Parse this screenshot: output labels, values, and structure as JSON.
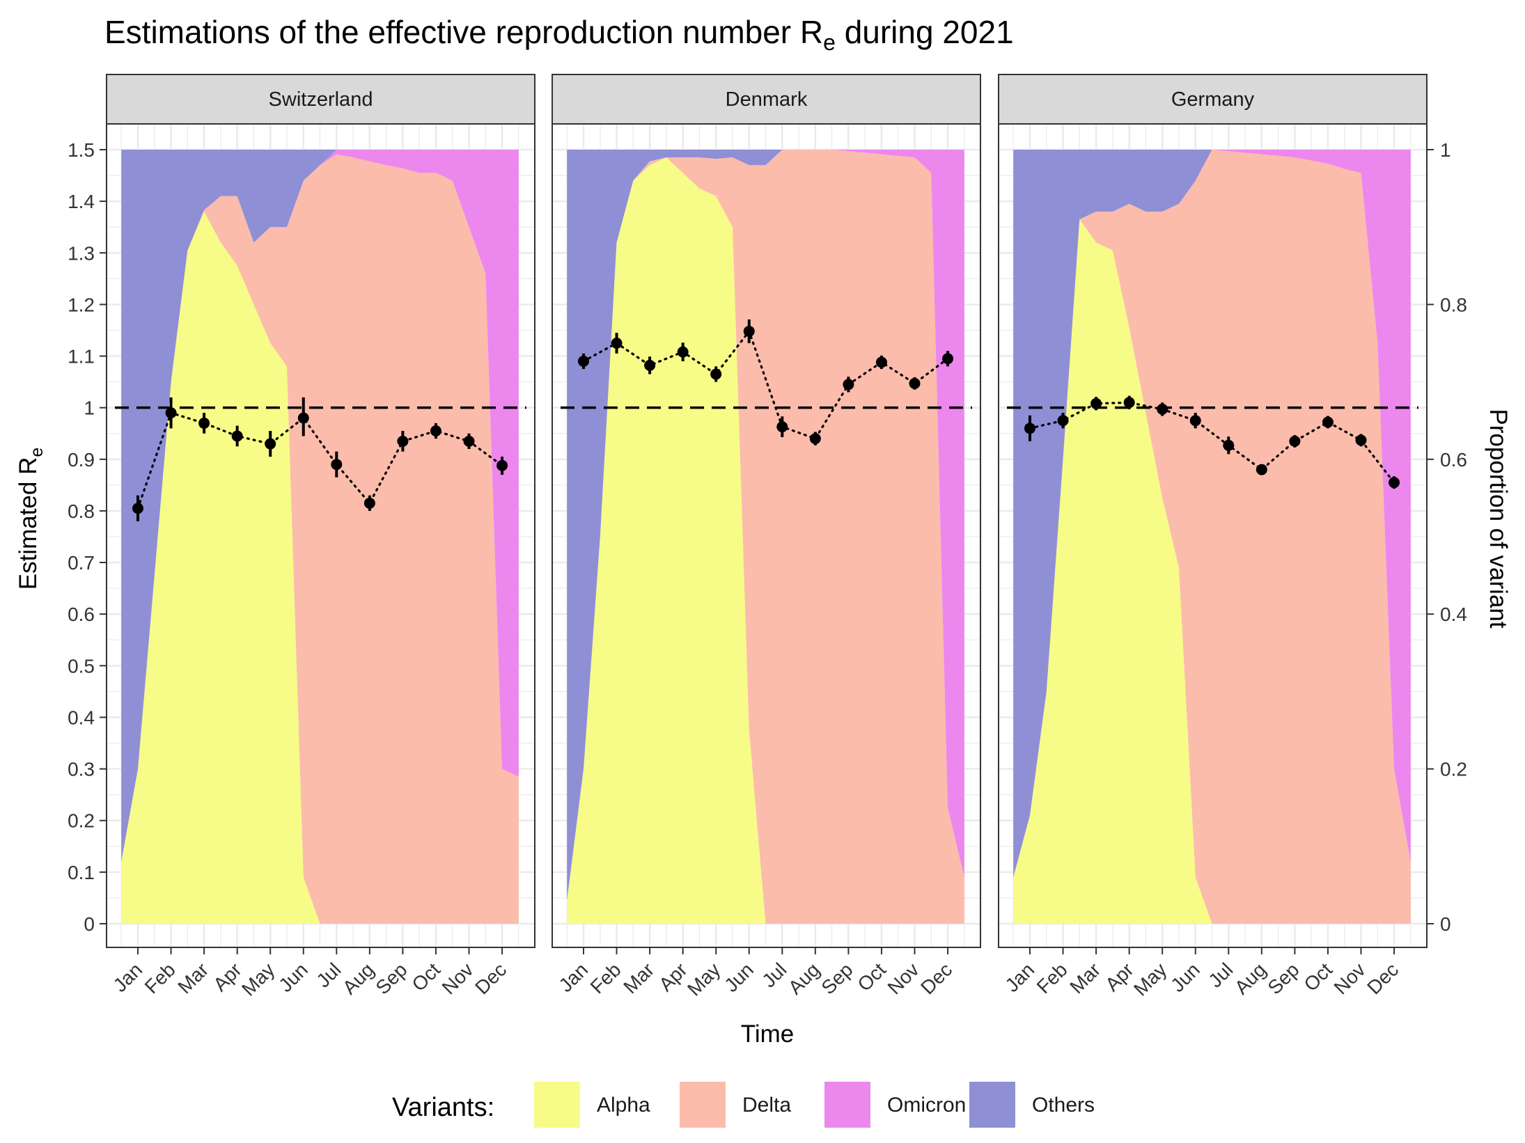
{
  "chart_data": {
    "type": "area",
    "title_main": "Estimations of the effective reproduction number R",
    "title_sub": "e",
    "title_tail": " during 2021",
    "xlabel": "Time",
    "ylabel_main": "Estimated R",
    "ylabel_sub": "e",
    "y2label": "Proportion of variant",
    "ylim": [
      0,
      1.5
    ],
    "y2lim": [
      0,
      1
    ],
    "reference_line": 1,
    "grid": true,
    "legend_position": "bottom",
    "legend_title": "Variants:",
    "months": [
      "Jan",
      "Feb",
      "Mar",
      "Apr",
      "May",
      "Jun",
      "Jul",
      "Aug",
      "Sep",
      "Oct",
      "Nov",
      "Dec"
    ],
    "y_ticks": [
      "0",
      "0.1",
      "0.2",
      "0.3",
      "0.4",
      "0.5",
      "0.6",
      "0.7",
      "0.8",
      "0.9",
      "1",
      "1.1",
      "1.2",
      "1.3",
      "1.4",
      "1.5"
    ],
    "y2_ticks": [
      "0",
      "0.2",
      "0.4",
      "0.6",
      "0.8",
      "1"
    ],
    "variants": [
      {
        "name": "Alpha",
        "color": "#f7fb87"
      },
      {
        "name": "Delta",
        "color": "#fbbcac"
      },
      {
        "name": "Omicron",
        "color": "#ec87ee"
      },
      {
        "name": "Others",
        "color": "#8f8fd6"
      }
    ],
    "facets": [
      {
        "name": "Switzerland",
        "re": [
          0.805,
          0.99,
          0.97,
          0.945,
          0.93,
          0.98,
          0.89,
          0.815,
          0.935,
          0.955,
          0.935,
          0.888
        ],
        "re_lower": [
          0.78,
          0.96,
          0.95,
          0.925,
          0.905,
          0.945,
          0.865,
          0.8,
          0.915,
          0.94,
          0.92,
          0.87
        ],
        "re_upper": [
          0.83,
          1.02,
          0.99,
          0.965,
          0.955,
          1.02,
          0.915,
          0.83,
          0.955,
          0.97,
          0.95,
          0.905
        ],
        "t": [
          -0.5,
          0,
          0.5,
          1,
          1.5,
          2,
          2.5,
          3,
          3.5,
          4,
          4.5,
          5,
          5.5,
          6,
          6.5,
          7,
          7.5,
          8,
          8.5,
          9,
          9.5,
          10,
          10.5,
          11,
          11.5
        ],
        "alpha": [
          0.08,
          0.2,
          0.45,
          0.7,
          0.87,
          0.92,
          0.88,
          0.85,
          0.8,
          0.75,
          0.72,
          0.06,
          0,
          0,
          0,
          0,
          0,
          0,
          0,
          0,
          0,
          0,
          0,
          0,
          0
        ],
        "delta": [
          0,
          0,
          0,
          0,
          0,
          0.002,
          0.06,
          0.09,
          0.08,
          0.15,
          0.18,
          0.9,
          0.98,
          0.994,
          0.99,
          0.985,
          0.98,
          0.976,
          0.97,
          0.97,
          0.96,
          0.9,
          0.84,
          0.2,
          0.19
        ],
        "omicron": [
          0,
          0,
          0,
          0,
          0,
          0,
          0,
          0,
          0,
          0,
          0,
          0,
          0,
          0.006,
          0.01,
          0.015,
          0.02,
          0.024,
          0.03,
          0.03,
          0.04,
          0.1,
          0.16,
          0.8,
          0.81
        ]
      },
      {
        "name": "Denmark",
        "re": [
          1.09,
          1.125,
          1.082,
          1.108,
          1.065,
          1.148,
          0.963,
          0.94,
          1.045,
          1.088,
          1.047,
          1.095
        ],
        "re_lower": [
          1.075,
          1.105,
          1.065,
          1.09,
          1.05,
          1.125,
          0.943,
          0.927,
          1.03,
          1.075,
          1.035,
          1.08
        ],
        "re_upper": [
          1.105,
          1.145,
          1.099,
          1.126,
          1.08,
          1.171,
          0.983,
          0.953,
          1.06,
          1.101,
          1.059,
          1.11
        ],
        "t": [
          -0.5,
          0,
          0.5,
          1,
          1.5,
          2,
          2.5,
          3,
          3.5,
          4,
          4.5,
          5,
          5.5,
          6,
          6.5,
          7,
          7.5,
          8,
          8.5,
          9,
          9.5,
          10,
          10.5,
          11,
          11.5
        ],
        "alpha": [
          0.03,
          0.2,
          0.5,
          0.88,
          0.96,
          0.98,
          0.99,
          0.97,
          0.95,
          0.94,
          0.9,
          0.25,
          0,
          0,
          0,
          0,
          0,
          0,
          0,
          0,
          0,
          0,
          0,
          0,
          0
        ],
        "delta": [
          0,
          0,
          0,
          0,
          0,
          0.005,
          0,
          0.02,
          0.04,
          0.048,
          0.09,
          0.73,
          0.98,
          1,
          1,
          1,
          1,
          0.998,
          0.996,
          0.994,
          0.992,
          0.99,
          0.97,
          0.15,
          0.06
        ],
        "omicron": [
          0,
          0,
          0,
          0,
          0,
          0,
          0,
          0,
          0,
          0,
          0,
          0,
          0,
          0,
          0,
          0,
          0,
          0.002,
          0.004,
          0.006,
          0.008,
          0.01,
          0.03,
          0.85,
          0.94
        ]
      },
      {
        "name": "Germany",
        "re": [
          0.96,
          0.975,
          1.008,
          1.01,
          0.997,
          0.975,
          0.927,
          0.88,
          0.935,
          0.972,
          0.937,
          0.855
        ],
        "re_lower": [
          0.935,
          0.96,
          0.995,
          0.997,
          0.984,
          0.96,
          0.91,
          0.87,
          0.923,
          0.96,
          0.925,
          0.843
        ],
        "re_upper": [
          0.985,
          0.99,
          1.021,
          1.023,
          1.01,
          0.99,
          0.944,
          0.89,
          0.947,
          0.984,
          0.949,
          0.867
        ],
        "t": [
          -0.5,
          0,
          0.5,
          1,
          1.5,
          2,
          2.5,
          3,
          3.5,
          4,
          4.5,
          5,
          5.5,
          6,
          6.5,
          7,
          7.5,
          8,
          8.5,
          9,
          9.5,
          10,
          10.5,
          11,
          11.5
        ],
        "alpha": [
          0.06,
          0.14,
          0.3,
          0.6,
          0.91,
          0.88,
          0.87,
          0.77,
          0.66,
          0.55,
          0.46,
          0.06,
          0,
          0,
          0,
          0,
          0,
          0,
          0,
          0,
          0,
          0,
          0,
          0,
          0
        ],
        "delta": [
          0,
          0,
          0,
          0,
          0,
          0.04,
          0.05,
          0.16,
          0.26,
          0.37,
          0.47,
          0.9,
          1,
          0.998,
          0.996,
          0.994,
          0.992,
          0.99,
          0.986,
          0.982,
          0.975,
          0.97,
          0.75,
          0.2,
          0.08
        ],
        "omicron": [
          0,
          0,
          0,
          0,
          0,
          0,
          0,
          0,
          0,
          0,
          0,
          0,
          0,
          0.002,
          0.004,
          0.006,
          0.008,
          0.01,
          0.014,
          0.018,
          0.025,
          0.03,
          0.25,
          0.8,
          0.92
        ]
      }
    ]
  }
}
